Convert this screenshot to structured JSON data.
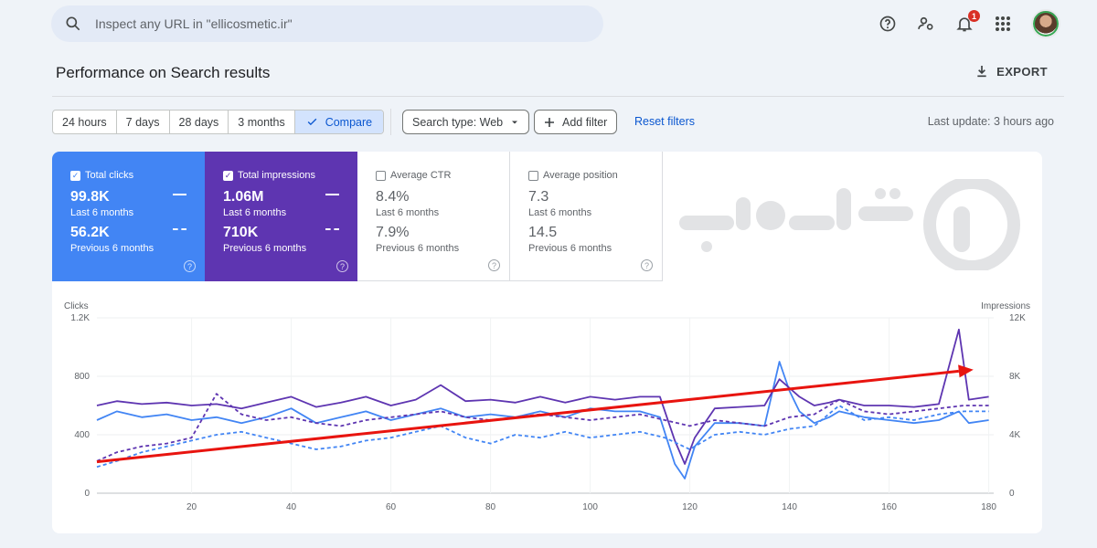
{
  "search": {
    "placeholder": "Inspect any URL in \"ellicosmetic.ir\""
  },
  "header": {
    "notification_count": "1",
    "icons": [
      "help-icon",
      "manage-users-icon",
      "bell-icon",
      "apps-icon",
      "avatar"
    ]
  },
  "page": {
    "title": "Performance on Search results",
    "export_label": "EXPORT"
  },
  "filters": {
    "ranges": [
      "24 hours",
      "7 days",
      "28 days",
      "3 months"
    ],
    "compare_label": "Compare",
    "search_type": "Search type: Web",
    "add_filter": "Add filter",
    "reset": "Reset filters",
    "last_update": "Last update: 3 hours ago"
  },
  "metrics": {
    "clicks": {
      "label": "Total clicks",
      "current": "99.8K",
      "current_sub": "Last 6 months",
      "previous": "56.2K",
      "previous_sub": "Previous 6 months",
      "checked": true
    },
    "impressions": {
      "label": "Total impressions",
      "current": "1.06M",
      "current_sub": "Last 6 months",
      "previous": "710K",
      "previous_sub": "Previous 6 months",
      "checked": true
    },
    "ctr": {
      "label": "Average CTR",
      "current": "8.4%",
      "current_sub": "Last 6 months",
      "previous": "7.9%",
      "previous_sub": "Previous 6 months",
      "checked": false
    },
    "position": {
      "label": "Average position",
      "current": "7.3",
      "current_sub": "Last 6 months",
      "previous": "14.5",
      "previous_sub": "Previous 6 months",
      "checked": false
    }
  },
  "colors": {
    "clicks": "#4285f4",
    "impressions": "#5e35b1",
    "arrow": "#e8140f",
    "accent": "#0b57d0"
  },
  "chart_data": {
    "type": "line",
    "left_axis_label": "Clicks",
    "right_axis_label": "Impressions",
    "left_ticks": [
      "0",
      "400",
      "800",
      "1.2K"
    ],
    "right_ticks": [
      "0",
      "4K",
      "8K",
      "12K"
    ],
    "x_ticks": [
      "20",
      "40",
      "60",
      "80",
      "100",
      "120",
      "140",
      "160",
      "180"
    ],
    "xlim": [
      1,
      181
    ],
    "ylim_left": [
      0,
      1200
    ],
    "ylim_right": [
      0,
      12000
    ],
    "series": [
      {
        "axis": "left",
        "style": "solid",
        "color": "#4285f4",
        "x": [
          1,
          5,
          10,
          15,
          20,
          25,
          30,
          35,
          40,
          45,
          50,
          55,
          60,
          65,
          70,
          75,
          80,
          85,
          90,
          95,
          100,
          105,
          110,
          114,
          117,
          119,
          121,
          125,
          130,
          135,
          138,
          140,
          142,
          145,
          148,
          150,
          155,
          160,
          165,
          170,
          174,
          176,
          180
        ],
        "values": [
          500,
          560,
          520,
          540,
          500,
          520,
          480,
          520,
          580,
          480,
          520,
          560,
          500,
          540,
          580,
          520,
          540,
          520,
          560,
          520,
          580,
          560,
          560,
          520,
          200,
          100,
          320,
          480,
          480,
          460,
          900,
          700,
          560,
          480,
          520,
          560,
          520,
          500,
          480,
          500,
          560,
          480,
          500
        ]
      },
      {
        "axis": "right",
        "style": "solid",
        "color": "#5e35b1",
        "x": [
          1,
          5,
          10,
          15,
          20,
          25,
          30,
          35,
          40,
          45,
          50,
          55,
          60,
          65,
          70,
          75,
          80,
          85,
          90,
          95,
          100,
          105,
          110,
          114,
          117,
          119,
          121,
          125,
          130,
          135,
          138,
          140,
          142,
          145,
          148,
          150,
          155,
          160,
          165,
          170,
          174,
          176,
          180
        ],
        "values": [
          6000,
          6300,
          6100,
          6200,
          6000,
          6100,
          5800,
          6200,
          6600,
          5900,
          6200,
          6600,
          6000,
          6400,
          7400,
          6300,
          6400,
          6200,
          6600,
          6200,
          6600,
          6400,
          6600,
          6600,
          3600,
          2000,
          3800,
          5800,
          5900,
          6000,
          7800,
          7200,
          6600,
          6000,
          6200,
          6400,
          6000,
          6000,
          5900,
          6100,
          11200,
          6400,
          6600
        ]
      },
      {
        "axis": "left",
        "style": "dashed",
        "color": "#4285f4",
        "x": [
          1,
          5,
          10,
          15,
          20,
          25,
          30,
          35,
          40,
          45,
          50,
          55,
          60,
          65,
          70,
          75,
          80,
          85,
          90,
          95,
          100,
          105,
          110,
          115,
          120,
          125,
          130,
          135,
          140,
          145,
          150,
          155,
          160,
          165,
          170,
          175,
          180
        ],
        "values": [
          180,
          220,
          280,
          320,
          360,
          400,
          420,
          380,
          340,
          300,
          320,
          360,
          380,
          420,
          460,
          380,
          340,
          400,
          380,
          420,
          380,
          400,
          420,
          380,
          300,
          400,
          420,
          400,
          440,
          460,
          600,
          500,
          520,
          500,
          540,
          560,
          560
        ]
      },
      {
        "axis": "right",
        "style": "dashed",
        "color": "#5e35b1",
        "x": [
          1,
          5,
          10,
          15,
          20,
          25,
          30,
          35,
          40,
          45,
          50,
          55,
          60,
          65,
          70,
          75,
          80,
          85,
          90,
          95,
          100,
          105,
          110,
          115,
          120,
          125,
          130,
          135,
          140,
          145,
          150,
          155,
          160,
          165,
          170,
          175,
          180
        ],
        "values": [
          2200,
          2800,
          3200,
          3400,
          3800,
          6800,
          5400,
          5000,
          5200,
          4800,
          4600,
          5000,
          5200,
          5400,
          5600,
          5200,
          5000,
          5200,
          5400,
          5200,
          5000,
          5200,
          5400,
          5000,
          4600,
          5000,
          4800,
          4600,
          5200,
          5400,
          6400,
          5600,
          5400,
          5600,
          5800,
          6000,
          6000
        ]
      }
    ]
  }
}
